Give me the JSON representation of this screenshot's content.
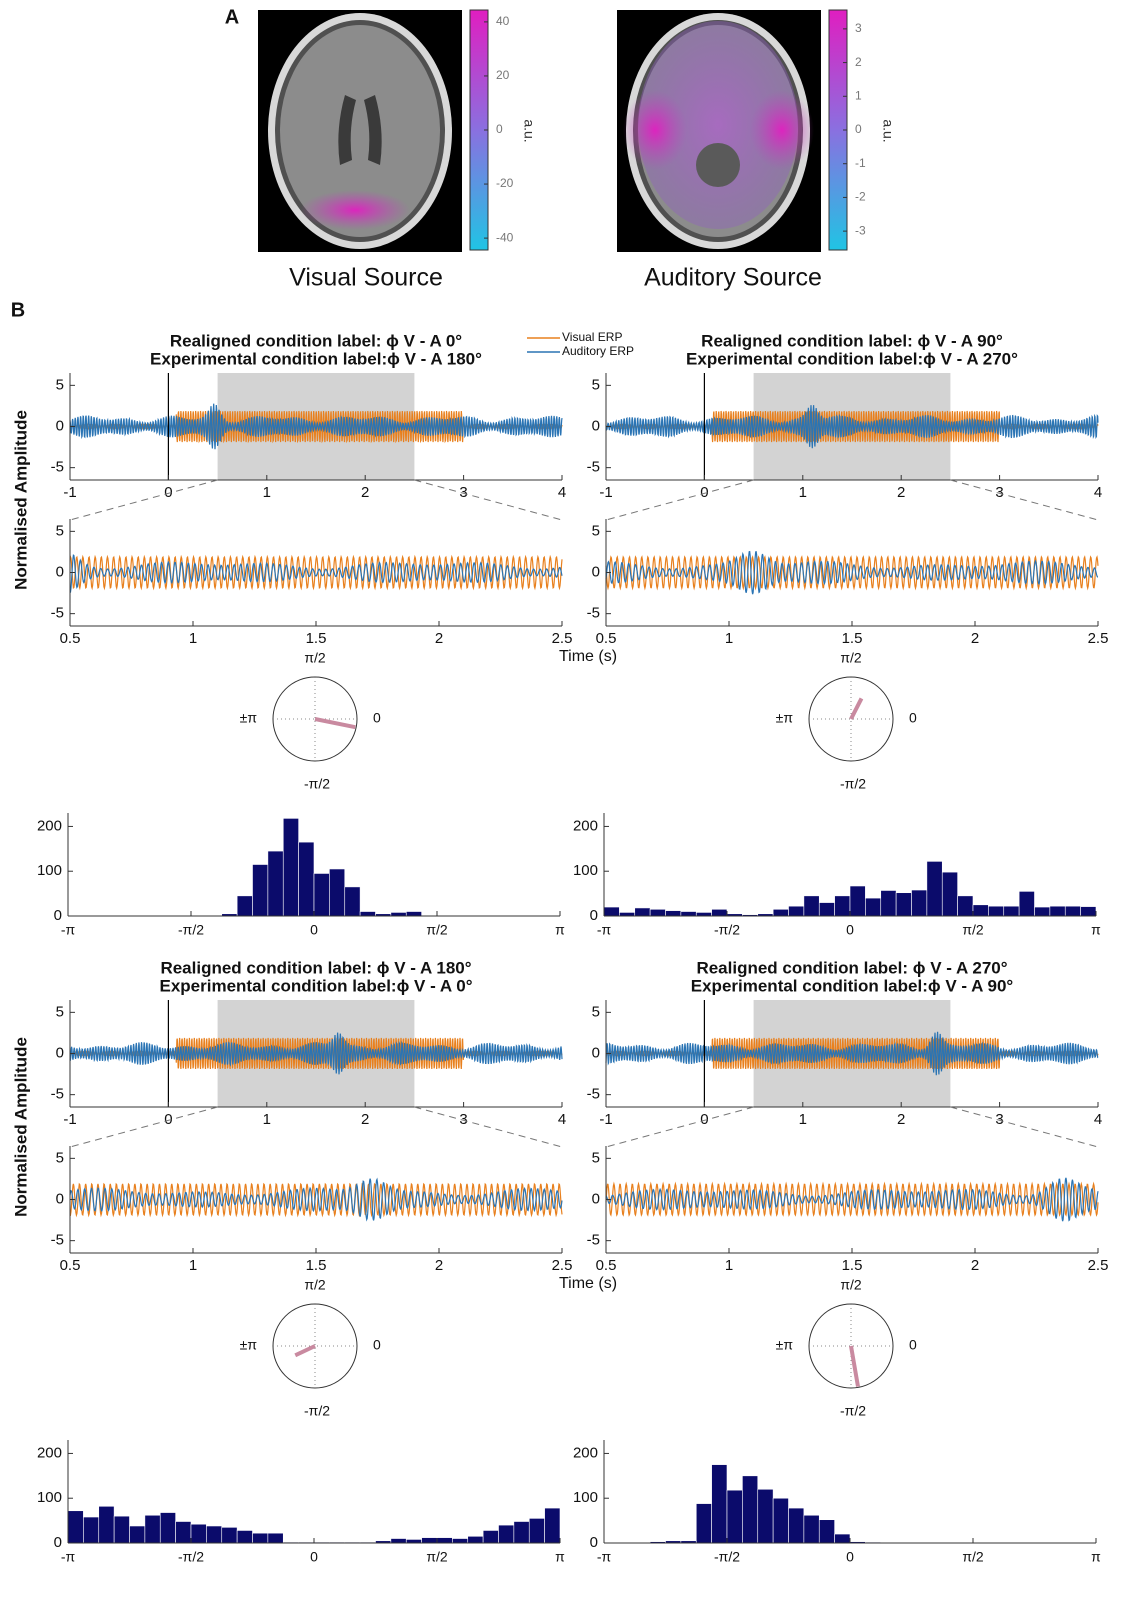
{
  "panel_a": {
    "label": "A",
    "sources": [
      {
        "caption": "Visual Source",
        "colorbar": {
          "label": "a.u.",
          "lim": [
            -44.4,
            44.4
          ],
          "ticks": [
            40,
            20,
            0,
            -20,
            -40
          ]
        }
      },
      {
        "caption": "Auditory Source",
        "colorbar": {
          "label": "a.u.",
          "lim": [
            -3.56,
            3.56
          ],
          "ticks": [
            3,
            2,
            1,
            0,
            -1,
            -2,
            -3
          ]
        }
      }
    ]
  },
  "panel_b": {
    "label": "B",
    "y_label": "Normalised Amplitude",
    "x_label": "Time (s)",
    "legend": [
      {
        "name": "Visual ERP",
        "color": "#e8801e"
      },
      {
        "name": "Auditory ERP",
        "color": "#2a74b4"
      }
    ],
    "overview": {
      "xlim": [
        -1,
        4
      ],
      "ylim": [
        -6.5,
        6.5
      ],
      "xticks": [
        -1,
        0,
        1,
        2,
        3,
        4
      ],
      "yticks": [
        5,
        0,
        -5
      ],
      "window": [
        0.5,
        2.5
      ],
      "event": 0
    },
    "zoom": {
      "xlim": [
        0.5,
        2.5
      ],
      "ylim": [
        -6.5,
        6.5
      ],
      "xticks": [
        0.5,
        1,
        1.5,
        2,
        2.5
      ],
      "yticks": [
        5,
        0,
        -5
      ]
    },
    "polar": {
      "rlim": [
        0,
        1
      ],
      "labels": {
        "top": "π/2",
        "right": "0",
        "bottom": "-π/2",
        "left": "±π"
      }
    },
    "histogram_axes": {
      "xlim": [
        -3.1416,
        3.1416
      ],
      "ylim": [
        0,
        230
      ],
      "yticks": [
        0,
        100,
        200
      ],
      "xticks": [
        {
          "value": -3.1416,
          "label": "-π"
        },
        {
          "value": -1.5708,
          "label": "-π/2"
        },
        0,
        {
          "value": 1.5708,
          "label": "π/2"
        },
        {
          "value": 3.1416,
          "label": "π"
        }
      ]
    },
    "conditions": [
      {
        "title_lines": [
          "Realigned condition label: ϕ V - A 0°",
          "Experimental condition label:ϕ V - A 180°"
        ],
        "polar": {
          "angle": -0.2,
          "length": 0.98
        },
        "histogram": {
          "type": "histogram",
          "color": "#0b0b6b",
          "bins": [
            -3.1416,
            -2.9452,
            -2.7489,
            -2.5525,
            -2.3562,
            -2.1598,
            -1.9635,
            -1.7671,
            -1.5708,
            -1.3744,
            -1.1781,
            -0.9817,
            -0.7854,
            -0.589,
            -0.3927,
            -0.1963,
            0,
            0.1963,
            0.3927,
            0.589,
            0.7854,
            0.9817,
            1.1781,
            1.3744,
            1.5708,
            1.7671,
            1.9635,
            2.1598,
            2.3562,
            2.5525,
            2.7489,
            2.9452,
            3.1416
          ],
          "counts": [
            0,
            0,
            0,
            0,
            0,
            0,
            0,
            0,
            0,
            0,
            5,
            45,
            115,
            145,
            218,
            165,
            95,
            105,
            65,
            10,
            5,
            8,
            10,
            0,
            0,
            0,
            0,
            0,
            0,
            0,
            0,
            0
          ]
        }
      },
      {
        "title_lines": [
          "Realigned condition label: ϕ V - A 90°",
          "Experimental condition label:ϕ V - A 270°"
        ],
        "polar": {
          "angle": 1.1,
          "length": 0.55
        },
        "histogram": {
          "type": "histogram",
          "color": "#0b0b6b",
          "bins": [
            -3.1416,
            -2.9452,
            -2.7489,
            -2.5525,
            -2.3562,
            -2.1598,
            -1.9635,
            -1.7671,
            -1.5708,
            -1.3744,
            -1.1781,
            -0.9817,
            -0.7854,
            -0.589,
            -0.3927,
            -0.1963,
            0,
            0.1963,
            0.3927,
            0.589,
            0.7854,
            0.9817,
            1.1781,
            1.3744,
            1.5708,
            1.7671,
            1.9635,
            2.1598,
            2.3562,
            2.5525,
            2.7489,
            2.9452,
            3.1416
          ],
          "counts": [
            20,
            8,
            18,
            15,
            12,
            10,
            8,
            15,
            5,
            3,
            5,
            15,
            22,
            45,
            30,
            45,
            67,
            40,
            57,
            52,
            58,
            122,
            98,
            45,
            25,
            22,
            22,
            55,
            20,
            22,
            22,
            21
          ]
        }
      },
      {
        "title_lines": [
          "Realigned condition label: ϕ V - A 180°",
          "Experimental condition label:ϕ V - A 0°"
        ],
        "polar": {
          "angle": -2.7,
          "length": 0.52
        },
        "histogram": {
          "type": "histogram",
          "color": "#0b0b6b",
          "bins": [
            -3.1416,
            -2.9452,
            -2.7489,
            -2.5525,
            -2.3562,
            -2.1598,
            -1.9635,
            -1.7671,
            -1.5708,
            -1.3744,
            -1.1781,
            -0.9817,
            -0.7854,
            -0.589,
            -0.3927,
            -0.1963,
            0,
            0.1963,
            0.3927,
            0.589,
            0.7854,
            0.9817,
            1.1781,
            1.3744,
            1.5708,
            1.7671,
            1.9635,
            2.1598,
            2.3562,
            2.5525,
            2.7489,
            2.9452,
            3.1416
          ],
          "counts": [
            72,
            58,
            82,
            60,
            38,
            62,
            68,
            48,
            42,
            38,
            35,
            28,
            22,
            22,
            2,
            2,
            2,
            2,
            2,
            2,
            5,
            10,
            8,
            12,
            12,
            10,
            15,
            28,
            40,
            48,
            55,
            78
          ]
        }
      },
      {
        "title_lines": [
          "Realigned condition label: ϕ V - A 270°",
          "Experimental condition label:ϕ V - A 90°"
        ],
        "polar": {
          "angle": -1.4,
          "length": 0.98
        },
        "histogram": {
          "type": "histogram",
          "color": "#0b0b6b",
          "bins": [
            -3.1416,
            -2.9452,
            -2.7489,
            -2.5525,
            -2.3562,
            -2.1598,
            -1.9635,
            -1.7671,
            -1.5708,
            -1.3744,
            -1.1781,
            -0.9817,
            -0.7854,
            -0.589,
            -0.3927,
            -0.1963,
            0,
            0.1963,
            0.3927,
            0.589,
            0.7854,
            0.9817,
            1.1781,
            1.3744,
            1.5708,
            1.7671,
            1.9635,
            2.1598,
            2.3562,
            2.5525,
            2.7489,
            2.9452,
            3.1416
          ],
          "counts": [
            0,
            0,
            0,
            3,
            5,
            5,
            88,
            175,
            118,
            150,
            120,
            100,
            78,
            62,
            52,
            20,
            3,
            2,
            0,
            0,
            0,
            0,
            0,
            0,
            0,
            0,
            0,
            0,
            0,
            0,
            0,
            0
          ]
        }
      }
    ]
  }
}
